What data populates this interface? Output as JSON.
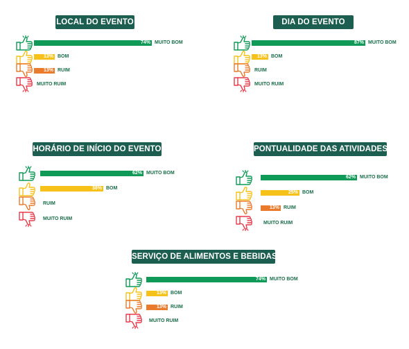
{
  "chart_data": [
    {
      "type": "bar",
      "title": "LOCAL DO EVENTO",
      "categories": [
        "MUITO BOM",
        "BOM",
        "RUIM",
        "MUITO RUIM"
      ],
      "values": [
        74,
        13,
        13,
        0
      ],
      "value_labels": [
        "74%",
        "13%",
        "13%",
        ""
      ],
      "colors": [
        "#0f9a57",
        "#f6c21a",
        "#ea7a2c",
        "#e8394a"
      ]
    },
    {
      "type": "bar",
      "title": "DIA DO EVENTO",
      "categories": [
        "MUITO BOM",
        "BOM",
        "RUIM",
        "MUITO RUIM"
      ],
      "values": [
        87,
        13,
        0,
        0
      ],
      "value_labels": [
        "87%",
        "13%",
        "",
        ""
      ],
      "colors": [
        "#0f9a57",
        "#f6c21a",
        "#ea7a2c",
        "#e8394a"
      ]
    },
    {
      "type": "bar",
      "title": "HORÁRIO DE INÍCIO DO EVENTO",
      "categories": [
        "MUITO BOM",
        "BOM",
        "RUIM",
        "MUITO RUIM"
      ],
      "values": [
        62,
        38,
        0,
        0
      ],
      "value_labels": [
        "62%",
        "38%",
        "",
        ""
      ],
      "colors": [
        "#0f9a57",
        "#f6c21a",
        "#ea7a2c",
        "#e8394a"
      ]
    },
    {
      "type": "bar",
      "title": "PONTUALIDADE DAS ATIVIDADES",
      "categories": [
        "MUITO BOM",
        "BOM",
        "RUIM",
        "MUITO RUIM"
      ],
      "values": [
        62,
        25,
        13,
        0
      ],
      "value_labels": [
        "62%",
        "25%",
        "13%",
        ""
      ],
      "colors": [
        "#0f9a57",
        "#f6c21a",
        "#ea7a2c",
        "#e8394a"
      ]
    },
    {
      "type": "bar",
      "title": "SERVIÇO DE ALIMENTOS E BEBIDAS",
      "categories": [
        "MUITO BOM",
        "BOM",
        "RUIM",
        "MUITO RUIM"
      ],
      "values": [
        74,
        13,
        13,
        0
      ],
      "value_labels": [
        "74%",
        "13%",
        "13%",
        ""
      ],
      "colors": [
        "#0f9a57",
        "#f6c21a",
        "#ea7a2c",
        "#e8394a"
      ]
    }
  ]
}
